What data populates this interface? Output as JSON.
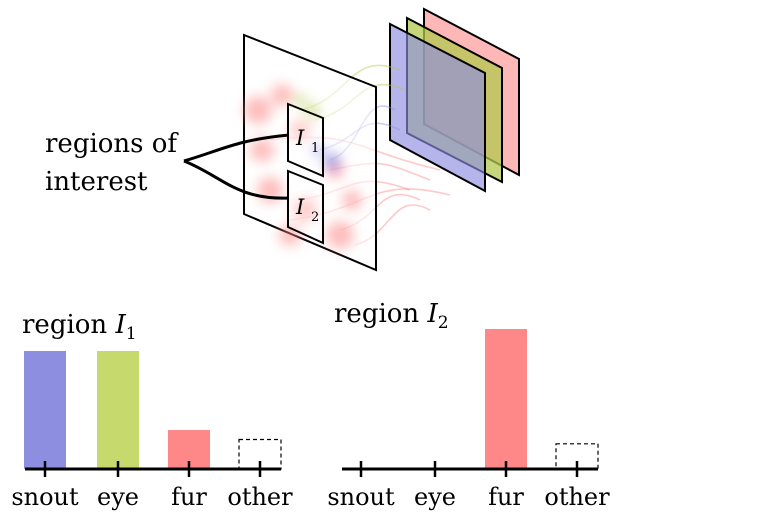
{
  "diagram": {
    "annotation_line1": "regions of",
    "annotation_line2": "interest",
    "region1_symbol": "I",
    "region1_sub": "1",
    "region2_symbol": "I",
    "region2_sub": "2"
  },
  "colors": {
    "snout": "#8e8ee0",
    "eye": "#c5d96c",
    "fur": "#fe8787",
    "other_border": "#000000"
  },
  "chart_data": [
    {
      "type": "bar",
      "title_text": "region ",
      "title_symbol": "I",
      "title_sub": "1",
      "categories": [
        "snout",
        "eye",
        "fur",
        "other"
      ],
      "values": [
        1.0,
        1.0,
        0.33,
        0.25
      ],
      "dashed_categories": [
        "other"
      ],
      "ylim": [
        0,
        1
      ]
    },
    {
      "type": "bar",
      "title_text": "region ",
      "title_symbol": "I",
      "title_sub": "2",
      "categories": [
        "snout",
        "eye",
        "fur",
        "other"
      ],
      "values": [
        0,
        0,
        1.0,
        0.18
      ],
      "dashed_categories": [
        "other"
      ],
      "ylim": [
        0,
        1
      ]
    }
  ]
}
